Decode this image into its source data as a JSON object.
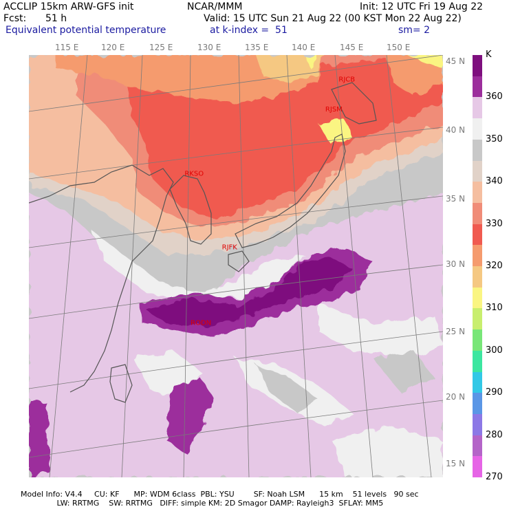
{
  "header": {
    "model": "ACCLIP 15km ARW-GFS init",
    "org": "NCAR/MMM",
    "init": "Init: 12 UTC Fri 19 Aug 22",
    "fcst_label": "Fcst:",
    "fcst_value": "51 h",
    "valid": "Valid: 15 UTC Sun 21 Aug 22 (00 KST Mon 22 Aug 22)",
    "field": "Equivalent potential temperature",
    "level": "at k-index =  51",
    "smooth": "sm= 2"
  },
  "longitudes": [
    "115 E",
    "120 E",
    "125 E",
    "130 E",
    "135 E",
    "140 E",
    "145 E",
    "150 E"
  ],
  "latitudes": [
    "45 N",
    "40 N",
    "35 N",
    "30 N",
    "25 N",
    "20 N",
    "15 N"
  ],
  "stations": [
    {
      "id": "RJCB",
      "lon": 143.0,
      "lat": 42.7
    },
    {
      "id": "RJSM",
      "lon": 141.4,
      "lat": 40.7
    },
    {
      "id": "RKSO",
      "lon": 127.0,
      "lat": 37.1
    },
    {
      "id": "RJFK",
      "lon": 130.7,
      "lat": 31.6
    },
    {
      "id": "RODN",
      "lon": 127.8,
      "lat": 26.4
    }
  ],
  "legend": {
    "unit": "K",
    "values": [
      "360",
      "350",
      "340",
      "330",
      "320",
      "310",
      "300",
      "290",
      "280",
      "270"
    ],
    "colors": [
      "#7e0f7e",
      "#9c2e9c",
      "#e6c8e6",
      "#f0f0f0",
      "#c8c8c8",
      "#e1d2c8",
      "#f5bea0",
      "#f08c78",
      "#f05a50",
      "#f59b6e",
      "#f5c882",
      "#faf582",
      "#c8ee6e",
      "#78e678",
      "#3ce6a0",
      "#32c8e6",
      "#5a96e6",
      "#8c78e6",
      "#b464c8",
      "#e664e6"
    ]
  },
  "footer": {
    "line1": "Model Info: V4.4     CU: KF      MP: WDM 6class  PBL: YSU        SF: Noah LSM      15 km    51 levels   90 sec",
    "line2": "               LW: RRTMG    SW: RRTMG   DIFF: simple KM: 2D Smagor DAMP: Rayleigh3  SFLAY: MM5"
  }
}
